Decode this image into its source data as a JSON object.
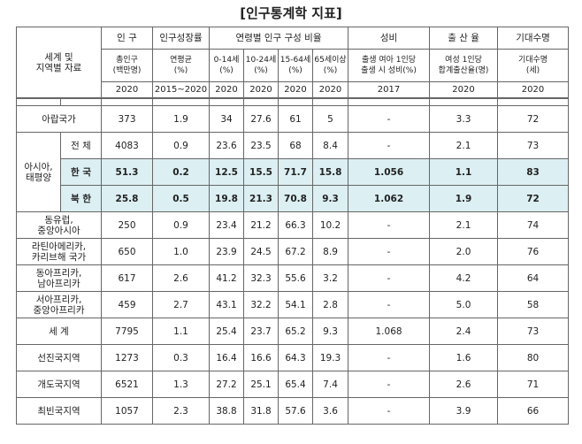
{
  "title": "[인구통계학 지표]",
  "table": {
    "head": {
      "corner": "세계 및\n지역별 자료",
      "groups": [
        "인 구",
        "인구성장률",
        "연령별 인구 구성 비율",
        "성비",
        "출 산 율",
        "기대수명"
      ],
      "units": [
        "총인구\n(백만명)",
        "연평균\n(%)",
        "0-14세\n(%)",
        "10-24세\n(%)",
        "15-64세\n(%)",
        "65세이상\n(%)",
        "출생 여아 1인당\n출생 시 성비(%)",
        "여성 1인당\n합계출산율(명)",
        "기대수명\n(세)"
      ],
      "years": [
        "2020",
        "2015~2020",
        "2020",
        "2020",
        "2020",
        "2020",
        "2017",
        "2020",
        "2020"
      ]
    },
    "rows": [
      {
        "region": "아랍국가",
        "cells": [
          "373",
          "1.9",
          "34",
          "27.6",
          "61",
          "5",
          "-",
          "3.3",
          "72"
        ]
      },
      {
        "group": "아시아,\n태평양",
        "subrows": [
          {
            "region": "전 체",
            "cells": [
              "4083",
              "0.9",
              "23.6",
              "23.5",
              "68",
              "8.4",
              "-",
              "2.1",
              "73"
            ]
          },
          {
            "region": "한 국",
            "highlight": true,
            "cells": [
              "51.3",
              "0.2",
              "12.5",
              "15.5",
              "71.7",
              "15.8",
              "1.056",
              "1.1",
              "83"
            ]
          },
          {
            "region": "북 한",
            "highlight": true,
            "cells": [
              "25.8",
              "0.5",
              "19.8",
              "21.3",
              "70.8",
              "9.3",
              "1.062",
              "1.9",
              "72"
            ]
          }
        ]
      },
      {
        "region": "동유럽,\n중앙아시아",
        "cells": [
          "250",
          "0.9",
          "23.4",
          "21.2",
          "66.3",
          "10.2",
          "-",
          "2.1",
          "74"
        ]
      },
      {
        "region": "라틴아메리카,\n카리브해 국가",
        "cells": [
          "650",
          "1.0",
          "23.9",
          "24.5",
          "67.2",
          "8.9",
          "-",
          "2.0",
          "76"
        ]
      },
      {
        "region": "동아프리카,\n남아프리카",
        "cells": [
          "617",
          "2.6",
          "41.2",
          "32.3",
          "55.6",
          "3.2",
          "-",
          "4.2",
          "64"
        ]
      },
      {
        "region": "서아프리카,\n중앙아프리카",
        "cells": [
          "459",
          "2.7",
          "43.1",
          "32.2",
          "54.1",
          "2.8",
          "-",
          "5.0",
          "58"
        ]
      },
      {
        "region": "세 계",
        "cells": [
          "7795",
          "1.1",
          "25.4",
          "23.7",
          "65.2",
          "9.3",
          "1.068",
          "2.4",
          "73"
        ]
      },
      {
        "region": "선진국지역",
        "cells": [
          "1273",
          "0.3",
          "16.4",
          "16.6",
          "64.3",
          "19.3",
          "-",
          "1.6",
          "80"
        ]
      },
      {
        "region": "개도국지역",
        "cells": [
          "6521",
          "1.3",
          "27.2",
          "25.1",
          "65.4",
          "7.4",
          "-",
          "2.6",
          "71"
        ]
      },
      {
        "region": "최빈국지역",
        "cells": [
          "1057",
          "2.3",
          "38.8",
          "31.8",
          "57.6",
          "3.6",
          "-",
          "3.9",
          "66"
        ]
      }
    ]
  }
}
